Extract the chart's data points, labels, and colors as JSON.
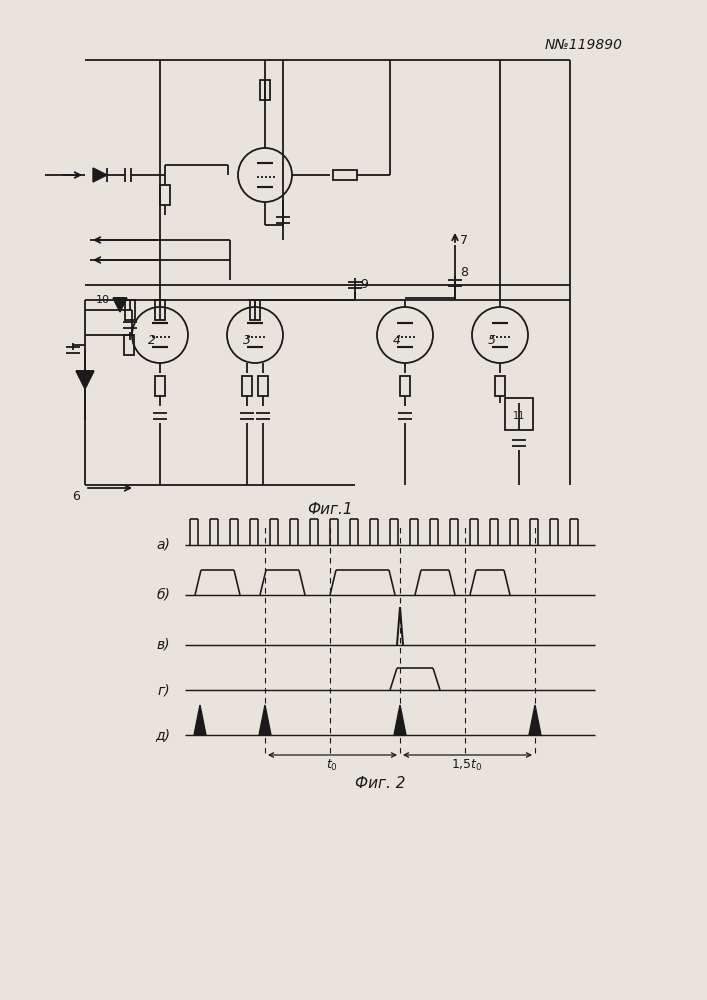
{
  "patent_number": "N№119890",
  "fig1_label": "Фиг.1",
  "fig2_label": "Фиг. 2",
  "waveform_labels": [
    "а)",
    "б)",
    "в)",
    "г)",
    "д)"
  ],
  "bg_color": "#e8e4dc",
  "line_color": "#1a1a1a"
}
